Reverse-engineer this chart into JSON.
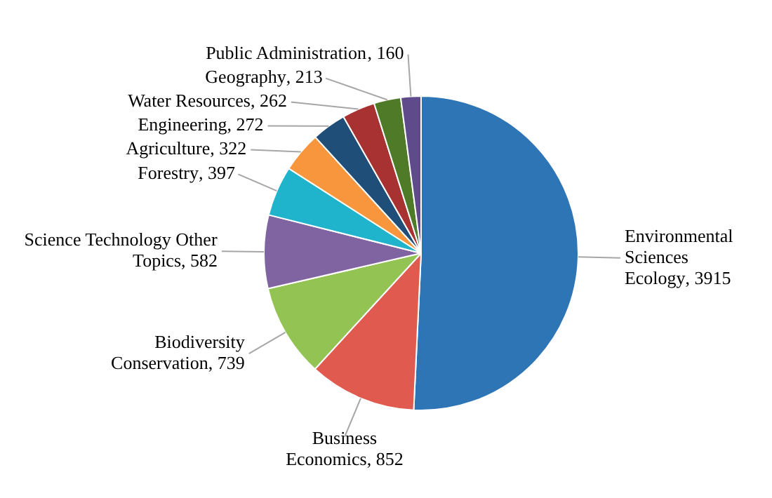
{
  "chart_data": {
    "type": "pie",
    "categories": [
      "Environmental Sciences Ecology",
      "Business Economics",
      "Biodiversity Conservation",
      "Science Technology Other Topics",
      "Forestry",
      "Agriculture",
      "Engineering",
      "Water Resources",
      "Geography",
      "Public Administration"
    ],
    "values": [
      3915,
      852,
      739,
      582,
      397,
      322,
      272,
      262,
      213,
      160
    ],
    "colors": [
      "#2e75b6",
      "#e05a4f",
      "#92c353",
      "#8064a2",
      "#1fb3cc",
      "#f7963c",
      "#1f4e79",
      "#a83232",
      "#4f7a28",
      "#5f4b8b"
    ],
    "value_labels": [
      ", 3915",
      ", 852",
      ", 739",
      ", 582",
      ", 397",
      ", 322",
      ", 272",
      ", 262",
      ", 213",
      ", 160"
    ],
    "legend": false
  }
}
